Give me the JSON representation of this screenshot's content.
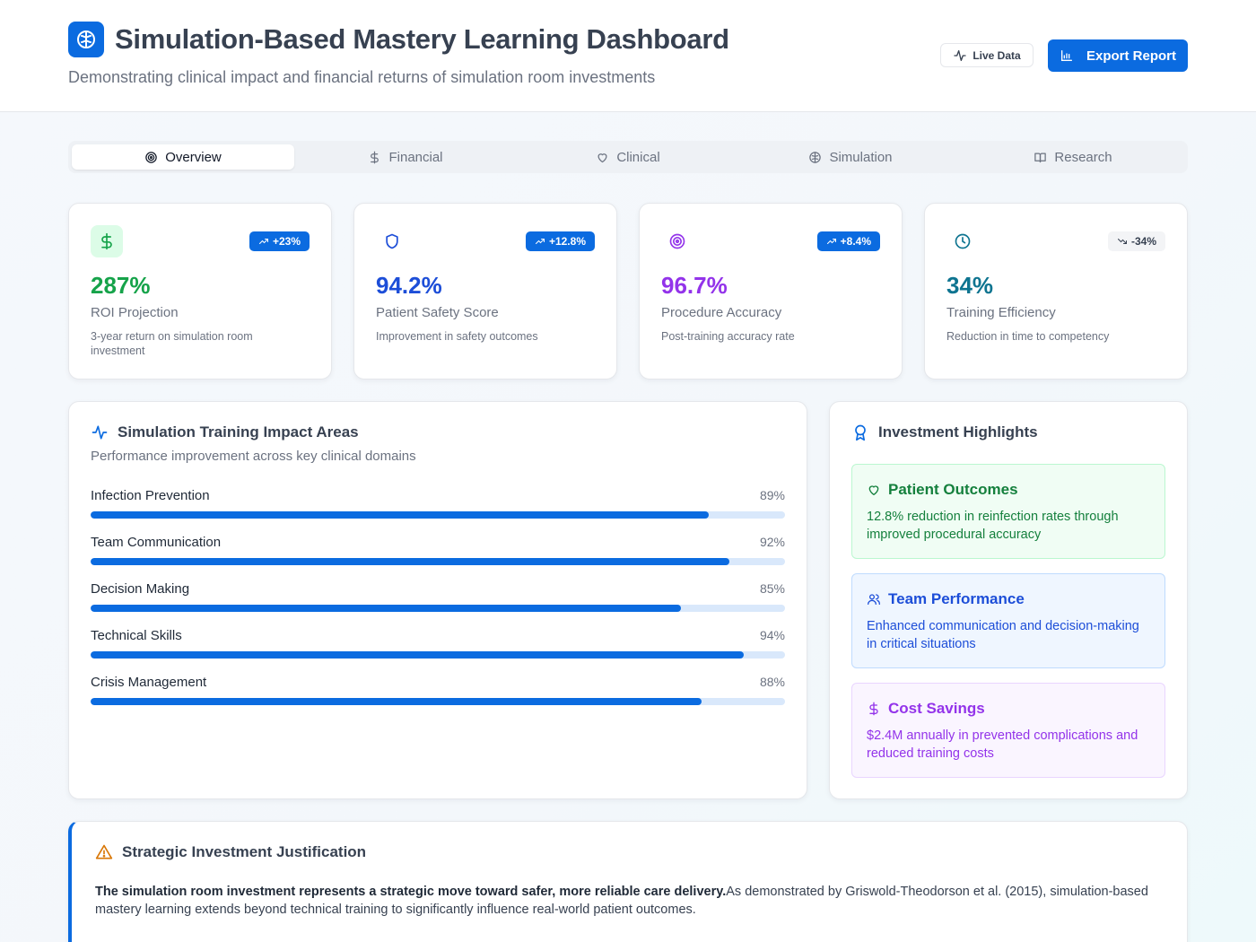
{
  "header": {
    "title": "Simulation-Based Mastery Learning Dashboard",
    "subtitle": "Demonstrating clinical impact and financial returns of simulation room investments",
    "live_label": "Live Data",
    "export_label": "Export Report"
  },
  "tabs": [
    {
      "label": "Overview",
      "icon": "target-icon",
      "active": true
    },
    {
      "label": "Financial",
      "icon": "dollar-icon",
      "active": false
    },
    {
      "label": "Clinical",
      "icon": "heart-icon",
      "active": false
    },
    {
      "label": "Simulation",
      "icon": "brain-icon",
      "active": false
    },
    {
      "label": "Research",
      "icon": "book-icon",
      "active": false
    }
  ],
  "kpis": [
    {
      "value": "287%",
      "label": "ROI Projection",
      "desc": "3-year return on simulation room investment",
      "badge": "+23%",
      "icon": "dollar-icon",
      "color": "#16a34a"
    },
    {
      "value": "94.2%",
      "label": "Patient Safety Score",
      "desc": "Improvement in safety outcomes",
      "badge": "+12.8%",
      "icon": "shield-icon",
      "color": "#1d4ed8"
    },
    {
      "value": "96.7%",
      "label": "Procedure Accuracy",
      "desc": "Post-training accuracy rate",
      "badge": "+8.4%",
      "icon": "target-icon",
      "color": "#9333ea"
    },
    {
      "value": "34%",
      "label": "Training Efficiency",
      "desc": "Reduction in time to competency",
      "badge": "-34%",
      "icon": "clock-icon",
      "color": "#0e7490"
    }
  ],
  "impact": {
    "title": "Simulation Training Impact Areas",
    "subtitle": "Performance improvement across key clinical domains",
    "areas": [
      {
        "label": "Infection Prevention",
        "pct_label": "89%",
        "value": 89
      },
      {
        "label": "Team Communication",
        "pct_label": "92%",
        "value": 92
      },
      {
        "label": "Decision Making",
        "pct_label": "85%",
        "value": 85
      },
      {
        "label": "Technical Skills",
        "pct_label": "94%",
        "value": 94
      },
      {
        "label": "Crisis Management",
        "pct_label": "88%",
        "value": 88
      }
    ]
  },
  "highlights": {
    "title": "Investment Highlights",
    "items": [
      {
        "title": "Patient Outcomes",
        "text": "12.8% reduction in reinfection rates through improved procedural accuracy",
        "icon": "heart-icon",
        "bg": "#f0fdf4",
        "border": "#bbf7d0",
        "color": "#15803d"
      },
      {
        "title": "Team Performance",
        "text": "Enhanced communication and decision-making in critical situations",
        "icon": "users-icon",
        "bg": "#eff6ff",
        "border": "#bfdbfe",
        "color": "#1d4ed8"
      },
      {
        "title": "Cost Savings",
        "text": "$2.4M annually in prevented complications and reduced training costs",
        "icon": "dollar-icon",
        "bg": "#faf5ff",
        "border": "#e9d5ff",
        "color": "#9333ea"
      }
    ]
  },
  "strategy": {
    "title": "Strategic Investment Justification",
    "lead": "The simulation room investment represents a strategic move toward safer, more reliable care delivery.",
    "body": "As demonstrated by Griswold-Theodorson et al. (2015), simulation-based mastery learning extends beyond technical training to significantly influence real-world patient outcomes."
  }
}
